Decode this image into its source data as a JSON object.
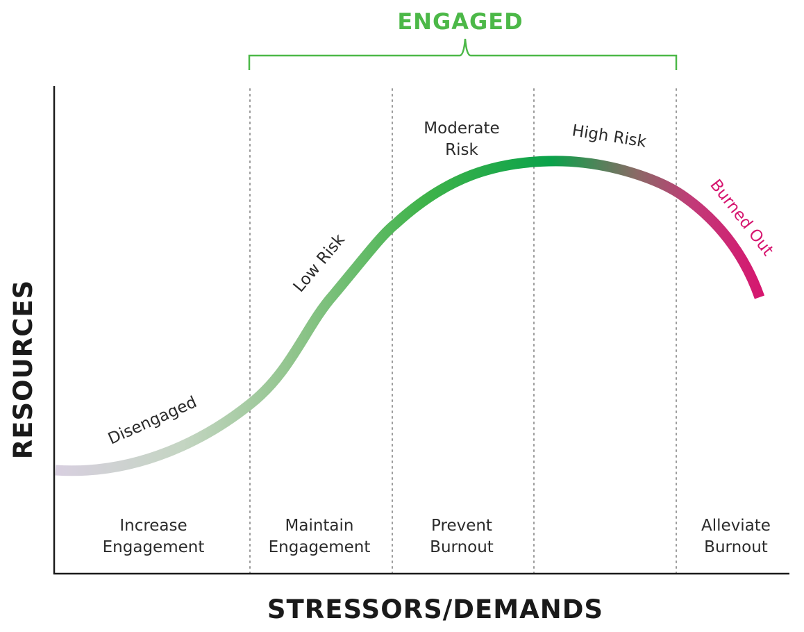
{
  "diagram": {
    "engaged_label": "ENGAGED",
    "y_axis_title": "RESOURCES",
    "x_axis_title": "STRESSORS/DEMANDS",
    "curve_labels": {
      "disengaged": "Disengaged",
      "low_risk": "Low Risk",
      "moderate_risk": [
        "Moderate",
        "Risk"
      ],
      "high_risk": "High Risk",
      "burned_out": "Burned Out"
    },
    "zones": [
      {
        "line1": "Increase",
        "line2": "Engagement"
      },
      {
        "line1": "Maintain",
        "line2": "Engagement"
      },
      {
        "line1": "Prevent",
        "line2": "Burnout"
      },
      {
        "line1": "",
        "line2": ""
      },
      {
        "line1": "Alleviate",
        "line2": "Burnout"
      }
    ],
    "colors": {
      "engaged_green": "#4cb848",
      "curve_start": "#d9cfe0",
      "curve_peak": "#0aa24a",
      "burnout_magenta": "#d6166f",
      "axis": "#1a1a1a",
      "divider": "#9a9a9a"
    }
  }
}
